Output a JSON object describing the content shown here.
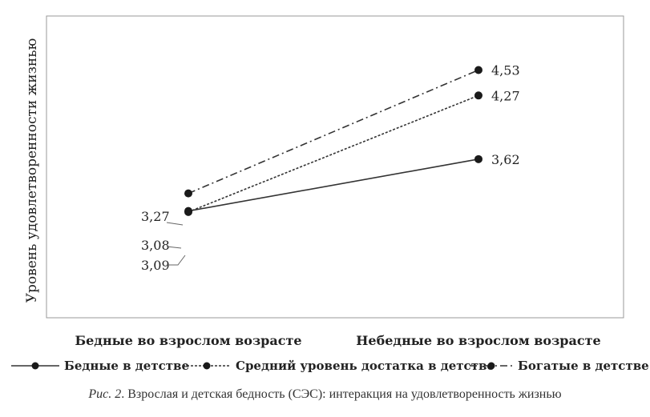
{
  "chart_data": {
    "type": "line",
    "categories": [
      "Бедные во взрослом возрасте",
      "Небедные во взрослом возрасте"
    ],
    "ylabel": "Уровень удовлетворенности жизнью",
    "xlabel": "",
    "ylim": [
      2.0,
      5.0
    ],
    "grid": false,
    "legend_position": "bottom",
    "series": [
      {
        "name": "Бедные в детстве",
        "values": [
          3.09,
          3.62
        ],
        "labels": [
          "3,09",
          "3,62"
        ],
        "style": "solid"
      },
      {
        "name": "Средний уровень достатка в детстве",
        "values": [
          3.08,
          4.27
        ],
        "labels": [
          "3,08",
          "4,27"
        ],
        "style": "dotted"
      },
      {
        "name": "Богатые в детстве",
        "values": [
          3.27,
          4.53
        ],
        "labels": [
          "3,27",
          "4,53"
        ],
        "style": "dashdot"
      }
    ]
  },
  "caption": {
    "figure_label": "Рис. 2",
    "text": ". Взрослая и детская бедность (СЭС): интеракция на удовлетворенность жизнью"
  },
  "colors": {
    "line": "#333333",
    "axis": "#999999"
  }
}
